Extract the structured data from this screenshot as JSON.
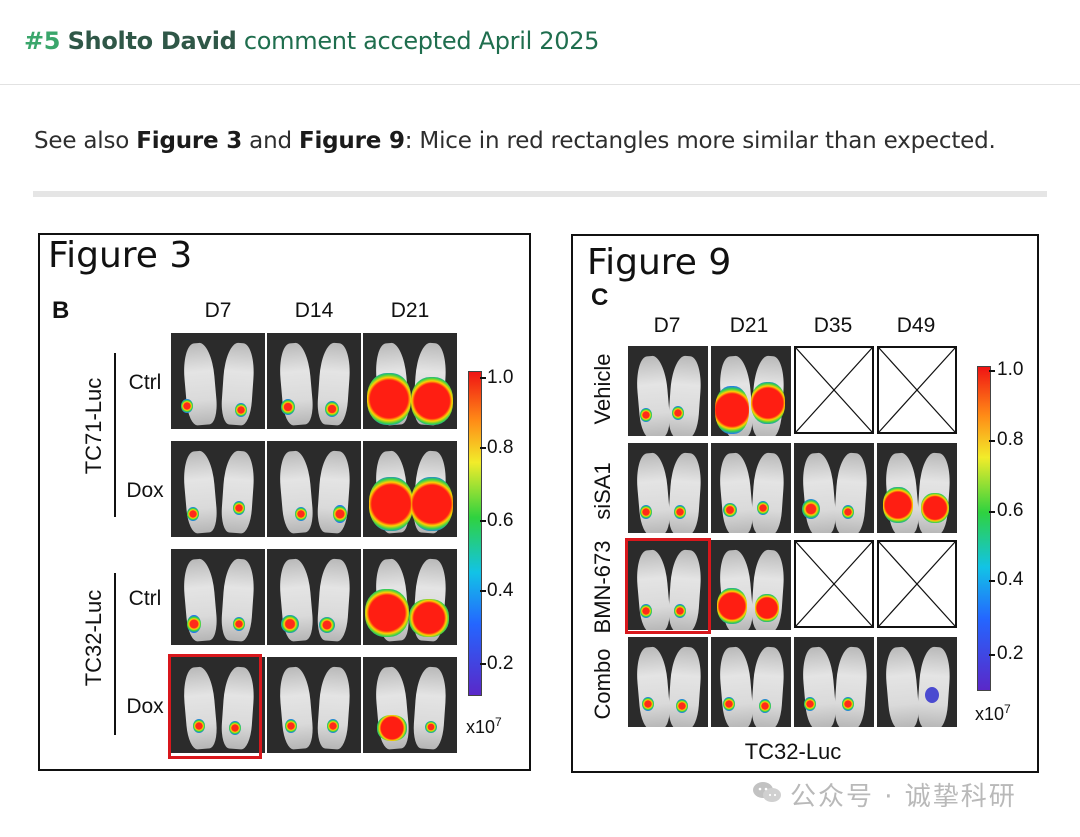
{
  "header": {
    "number": "#5",
    "author": "Sholto David",
    "status": "comment accepted April 2025"
  },
  "note": {
    "prefix": "See also ",
    "fig_a": "Figure 3",
    "mid": " and ",
    "fig_b": "Figure 9",
    "suffix": ": Mice in red rectangles more similar than expected."
  },
  "figure3": {
    "title": "Figure 3",
    "panel": "B",
    "columns": [
      "D7",
      "D14",
      "D21"
    ],
    "groups": [
      "TC71-Luc",
      "TC32-Luc"
    ],
    "rows": [
      "Ctrl",
      "Dox",
      "Ctrl",
      "Dox"
    ],
    "colorbar": {
      "ticks": [
        "1.0",
        "0.8",
        "0.6",
        "0.4",
        "0.2"
      ],
      "unit_base": "x10",
      "unit_exp": "7"
    }
  },
  "figure9": {
    "title": "Figure 9",
    "panel": "C",
    "columns": [
      "D7",
      "D21",
      "D35",
      "D49"
    ],
    "rows": [
      "Vehicle",
      "siSA1",
      "BMN-673",
      "Combo"
    ],
    "footer": "TC32-Luc",
    "colorbar": {
      "ticks": [
        "1.0",
        "0.8",
        "0.6",
        "0.4",
        "0.2"
      ],
      "unit_base": "x10",
      "unit_exp": "7"
    }
  },
  "watermark": {
    "text": "公众号 · 诚挚科研",
    "icon": "wechat-icon"
  },
  "colors": {
    "accent": "#1f6e4e",
    "highlight": "#d8171c"
  }
}
